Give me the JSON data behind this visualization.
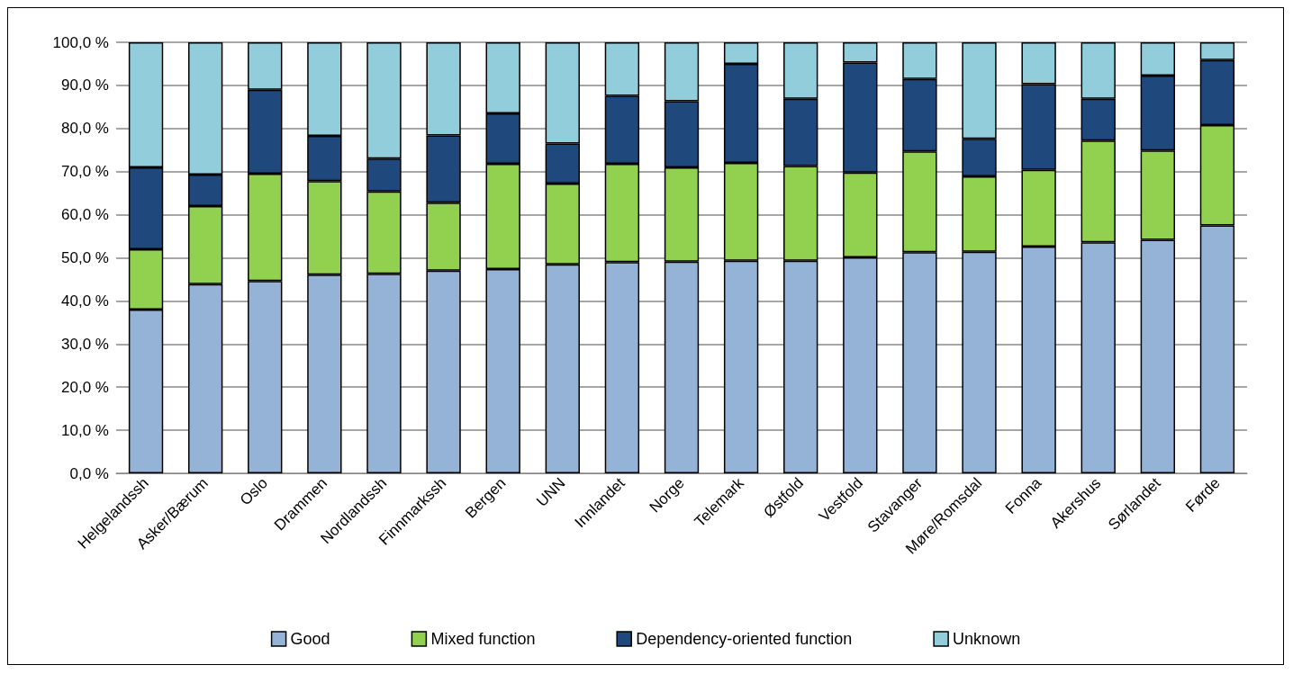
{
  "chart_data": {
    "type": "bar",
    "stacked": true,
    "categories": [
      "Helgelandssh",
      "Asker/Bærum",
      "Oslo",
      "Drammen",
      "Nordlandssh",
      "Finnmarkssh",
      "Bergen",
      "UNN",
      "Innlandet",
      "Norge",
      "Telemark",
      "Østfold",
      "Vestfold",
      "Stavanger",
      "Møre/Romsdal",
      "Fonna",
      "Akershus",
      "Sørlandet",
      "Førde"
    ],
    "series": [
      {
        "name": "Good",
        "color": "#95b3d7",
        "values": [
          38,
          43.9,
          44.6,
          46.1,
          46.3,
          47,
          47.4,
          48.5,
          49,
          49.1,
          49.3,
          49.3,
          50.1,
          51.3,
          51.4,
          52.6,
          53.6,
          54.2,
          57.5
        ]
      },
      {
        "name": "Mixed function",
        "color": "#92d050",
        "values": [
          14,
          18.1,
          24.9,
          21.7,
          19.1,
          15.8,
          24.4,
          18.7,
          22.8,
          21.9,
          22.7,
          22,
          19.7,
          23.4,
          17.5,
          17.8,
          23.6,
          20.7,
          23.3
        ]
      },
      {
        "name": "Dependency-oriented function",
        "color": "#1f497d",
        "values": [
          19,
          7.3,
          19.5,
          10.5,
          7.6,
          15.6,
          11.7,
          9.3,
          15.8,
          15.3,
          23,
          15.6,
          25.5,
          16.8,
          8.7,
          19.9,
          9.7,
          17.4,
          15.1
        ]
      },
      {
        "name": "Unknown",
        "color": "#92cddc",
        "values": [
          29,
          30.7,
          11,
          21.7,
          27,
          21.6,
          16.5,
          23.5,
          12.4,
          13.7,
          5,
          13.1,
          4.7,
          8.5,
          22.4,
          9.7,
          13.1,
          7.7,
          4.1
        ]
      }
    ],
    "ylim": [
      0,
      100
    ],
    "yticks": [
      {
        "value": 0,
        "label": "0,0 %"
      },
      {
        "value": 10,
        "label": "10,0 %"
      },
      {
        "value": 20,
        "label": "20,0 %"
      },
      {
        "value": 30,
        "label": "30,0 %"
      },
      {
        "value": 40,
        "label": "40,0 %"
      },
      {
        "value": 50,
        "label": "50,0 %"
      },
      {
        "value": 60,
        "label": "60,0 %"
      },
      {
        "value": 70,
        "label": "70,0 %"
      },
      {
        "value": 80,
        "label": "80,0 %"
      },
      {
        "value": 90,
        "label": "90,0 %"
      },
      {
        "value": 100,
        "label": "100,0 %"
      }
    ],
    "grid": "y",
    "legend": "bottom"
  }
}
